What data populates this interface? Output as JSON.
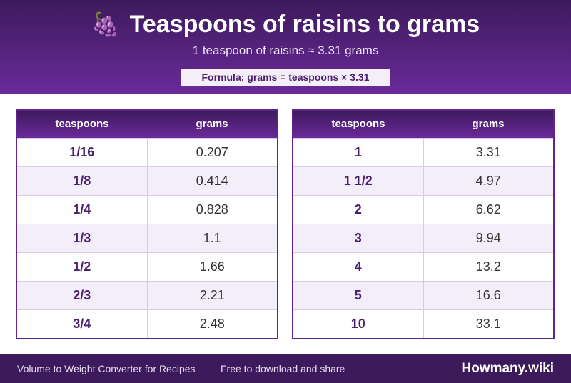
{
  "header": {
    "icon": "🍇",
    "icon_name": "grapes-icon",
    "title": "Teaspoons of raisins to grams",
    "subtitle": "1 teaspoon of raisins ≈ 3.31 grams",
    "formula": "Formula: grams = teaspoons × 3.31"
  },
  "tables": [
    {
      "col_tsp": "teaspoons",
      "col_g": "grams",
      "rows": [
        {
          "tsp": "1/16",
          "g": "0.207"
        },
        {
          "tsp": "1/8",
          "g": "0.414"
        },
        {
          "tsp": "1/4",
          "g": "0.828"
        },
        {
          "tsp": "1/3",
          "g": "1.1"
        },
        {
          "tsp": "1/2",
          "g": "1.66"
        },
        {
          "tsp": "2/3",
          "g": "2.21"
        },
        {
          "tsp": "3/4",
          "g": "2.48"
        }
      ]
    },
    {
      "col_tsp": "teaspoons",
      "col_g": "grams",
      "rows": [
        {
          "tsp": "1",
          "g": "3.31"
        },
        {
          "tsp": "1 1/2",
          "g": "4.97"
        },
        {
          "tsp": "2",
          "g": "6.62"
        },
        {
          "tsp": "3",
          "g": "9.94"
        },
        {
          "tsp": "4",
          "g": "13.2"
        },
        {
          "tsp": "5",
          "g": "16.6"
        },
        {
          "tsp": "10",
          "g": "33.1"
        }
      ]
    }
  ],
  "footer": {
    "left": "Volume to Weight Converter for Recipes",
    "middle": "Free to download and share",
    "brand": "Howmany.wiki"
  },
  "colors": {
    "header_dark": "#3d1a5c",
    "header_light": "#6a2a9a",
    "accent_text": "#4a1f6e"
  }
}
